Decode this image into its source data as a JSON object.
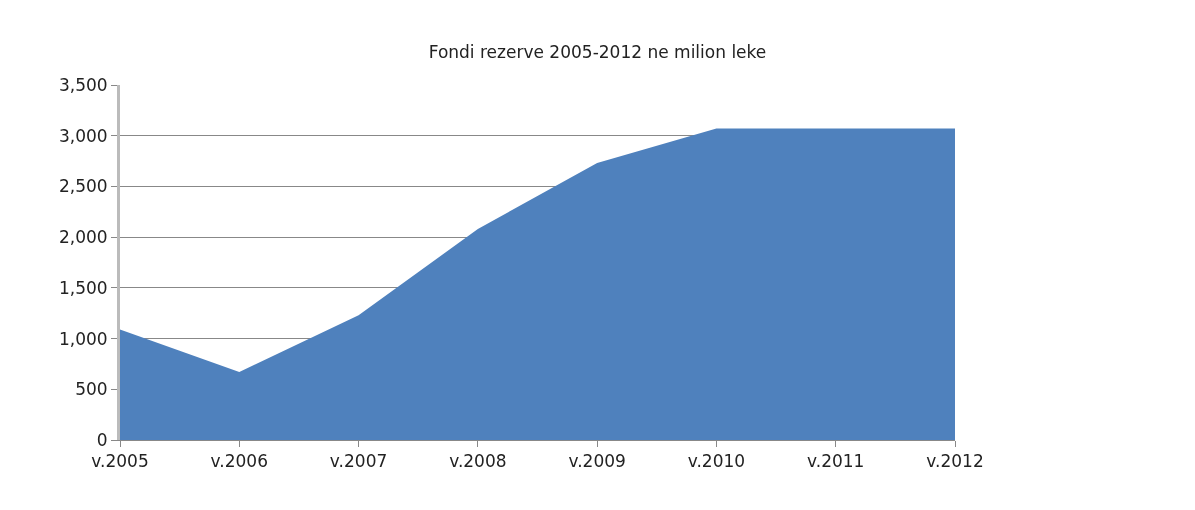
{
  "chart_data": {
    "type": "area",
    "title": "Fondi rezerve 2005-2012 ne milion leke",
    "categories": [
      "v.2005",
      "v.2006",
      "v.2007",
      "v.2008",
      "v.2009",
      "v.2010",
      "v.2011",
      "v.2012"
    ],
    "series": [
      {
        "color": "#4f81bd",
        "values": [
          1090,
          670,
          1230,
          2080,
          2730,
          3070,
          3070,
          3070
        ]
      }
    ],
    "ylim": [
      0,
      3500
    ],
    "yticks": [
      {
        "value": 0,
        "label": "0"
      },
      {
        "value": 500,
        "label": "500"
      },
      {
        "value": 1000,
        "label": "1,000"
      },
      {
        "value": 1500,
        "label": "1,500"
      },
      {
        "value": 2000,
        "label": "2,000"
      },
      {
        "value": 2500,
        "label": "2,500"
      },
      {
        "value": 3000,
        "label": "3,000"
      },
      {
        "value": 3500,
        "label": "3,500"
      }
    ],
    "grid": "y"
  }
}
